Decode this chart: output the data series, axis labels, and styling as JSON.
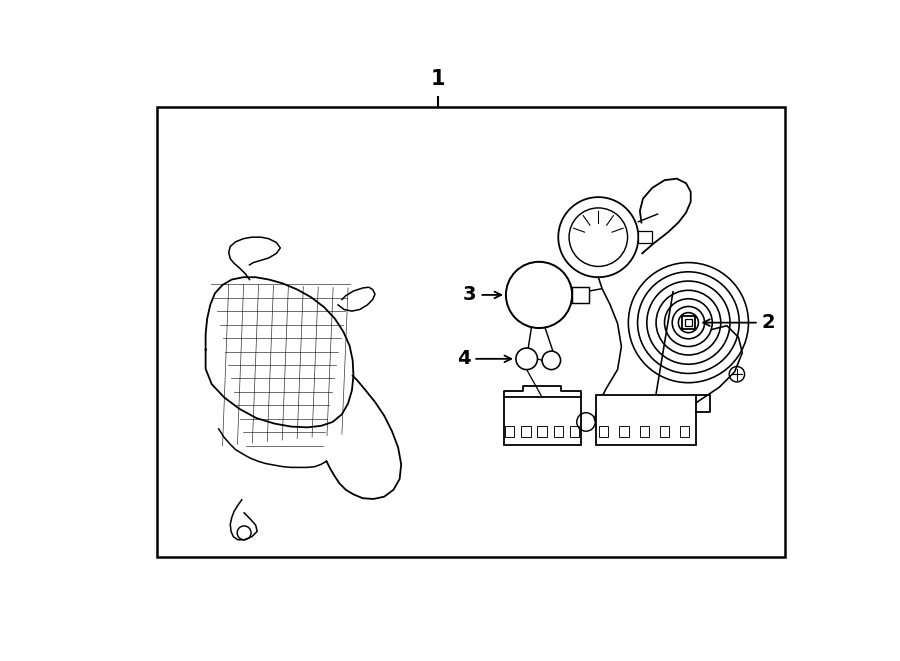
{
  "bg_color": "#ffffff",
  "line_color": "#000000",
  "fig_width": 9.0,
  "fig_height": 6.61,
  "dpi": 100,
  "label1": "1",
  "label2": "2",
  "label3": "3",
  "label4": "4"
}
